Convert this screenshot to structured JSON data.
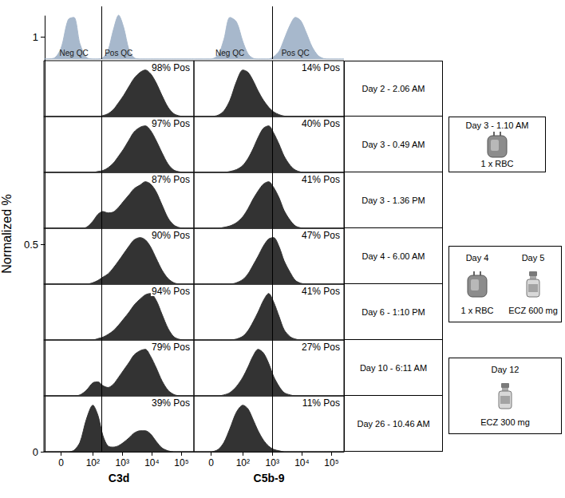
{
  "chart_data": [
    {
      "type": "area",
      "x_label": "C3d",
      "x": [
        -30,
        -10,
        0,
        10,
        20,
        35,
        60,
        100,
        150,
        220,
        330,
        500,
        750,
        1100,
        1700,
        2500,
        4000,
        6000,
        9000,
        14000,
        22000,
        35000,
        55000,
        90000,
        150000,
        262144
      ],
      "xlim": [
        -30,
        262144
      ],
      "xticks": [
        0,
        {
          "value": 100,
          "label": "10²"
        },
        {
          "value": 1000,
          "label": "10³"
        },
        {
          "value": 10000,
          "label": "10⁴"
        },
        {
          "value": 100000,
          "label": "10⁵"
        }
      ],
      "ylim": [
        0,
        1.2
      ],
      "threshold": 200,
      "tick_labels": "x",
      "qc": [
        {
          "name": "Neg QC",
          "color": "#a7b8cc",
          "values": [
            0,
            0.02,
            0.25,
            0.9,
            0.95,
            0.35,
            0.04,
            0,
            0,
            0,
            0,
            0,
            0,
            0,
            0,
            0,
            0,
            0,
            0,
            0,
            0,
            0,
            0,
            0,
            0,
            0
          ]
        },
        {
          "name": "Pos QC",
          "color": "#a7b8cc",
          "values": [
            0,
            0,
            0,
            0,
            0,
            0,
            0,
            0,
            0,
            0.03,
            0.2,
            0.67,
            1,
            0.73,
            0.2,
            0.03,
            0,
            0,
            0,
            0,
            0,
            0,
            0,
            0,
            0,
            0
          ]
        }
      ],
      "series": [
        {
          "name": "98% Pos",
          "color": "#333333",
          "values": [
            0,
            0,
            0,
            0,
            0,
            0,
            0,
            0,
            0,
            0.02,
            0.06,
            0.15,
            0.3,
            0.45,
            0.65,
            0.82,
            0.95,
            1,
            0.92,
            0.72,
            0.45,
            0.2,
            0.06,
            0.01,
            0,
            0
          ]
        },
        {
          "name": "97% Pos",
          "color": "#333333",
          "values": [
            0,
            0,
            0,
            0,
            0,
            0,
            0,
            0,
            0.02,
            0.04,
            0.1,
            0.2,
            0.35,
            0.5,
            0.7,
            0.87,
            0.97,
            1,
            0.9,
            0.68,
            0.42,
            0.18,
            0.05,
            0.01,
            0,
            0
          ]
        },
        {
          "name": "87% Pos",
          "color": "#333333",
          "values": [
            0,
            0,
            0,
            0,
            0,
            0,
            0.02,
            0.15,
            0.3,
            0.36,
            0.33,
            0.35,
            0.45,
            0.58,
            0.72,
            0.85,
            0.93,
            1,
            0.95,
            0.78,
            0.5,
            0.22,
            0.07,
            0.01,
            0,
            0
          ]
        },
        {
          "name": "90% Pos",
          "color": "#333333",
          "values": [
            0,
            0,
            0,
            0,
            0,
            0,
            0,
            0.03,
            0.08,
            0.15,
            0.22,
            0.35,
            0.5,
            0.65,
            0.82,
            0.95,
            1,
            0.95,
            0.8,
            0.55,
            0.3,
            0.12,
            0.03,
            0,
            0,
            0
          ]
        },
        {
          "name": "94% Pos",
          "color": "#333333",
          "values": [
            0,
            0,
            0,
            0,
            0,
            0,
            0,
            0,
            0.03,
            0.06,
            0.12,
            0.2,
            0.32,
            0.45,
            0.6,
            0.75,
            0.88,
            0.97,
            1,
            0.85,
            0.55,
            0.25,
            0.07,
            0.01,
            0,
            0
          ]
        },
        {
          "name": "79% Pos",
          "color": "#333333",
          "values": [
            0,
            0,
            0,
            0,
            0,
            0.02,
            0.12,
            0.28,
            0.3,
            0.22,
            0.18,
            0.25,
            0.4,
            0.55,
            0.72,
            0.88,
            0.97,
            1,
            0.85,
            0.6,
            0.32,
            0.12,
            0.03,
            0,
            0,
            0
          ]
        },
        {
          "name": "39% Pos",
          "color": "#333333",
          "values": [
            0,
            0,
            0,
            0,
            0.03,
            0.2,
            0.7,
            1,
            0.78,
            0.35,
            0.12,
            0.1,
            0.13,
            0.2,
            0.3,
            0.4,
            0.45,
            0.45,
            0.38,
            0.22,
            0.08,
            0.02,
            0,
            0,
            0,
            0
          ]
        }
      ]
    },
    {
      "type": "area",
      "x_label": "C5b-9",
      "x": [
        -30,
        -10,
        0,
        10,
        20,
        35,
        60,
        100,
        150,
        220,
        330,
        500,
        750,
        1100,
        1700,
        2500,
        4000,
        6000,
        9000,
        14000,
        22000,
        35000,
        55000,
        90000,
        150000,
        262144
      ],
      "xlim": [
        -30,
        262144
      ],
      "xticks": [
        0,
        {
          "value": 100,
          "label": "10²"
        },
        {
          "value": 1000,
          "label": "10³"
        },
        {
          "value": 10000,
          "label": "10⁴"
        },
        {
          "value": 100000,
          "label": "10⁵"
        }
      ],
      "ylim": [
        0,
        1.2
      ],
      "threshold": 1000,
      "tick_labels": "x",
      "qc": [
        {
          "name": "Neg QC",
          "color": "#a7b8cc",
          "values": [
            0,
            0,
            0,
            0.1,
            0.45,
            0.95,
            0.85,
            0.4,
            0.12,
            0.02,
            0,
            0,
            0,
            0,
            0,
            0,
            0,
            0,
            0,
            0,
            0,
            0,
            0,
            0,
            0,
            0
          ]
        },
        {
          "name": "Pos QC",
          "color": "#a7b8cc",
          "values": [
            0,
            0,
            0,
            0,
            0,
            0,
            0,
            0,
            0,
            0,
            0,
            0,
            0,
            0.05,
            0.18,
            0.45,
            0.78,
            0.95,
            0.88,
            0.6,
            0.28,
            0.08,
            0.01,
            0,
            0,
            0
          ]
        }
      ],
      "series": [
        {
          "name": "14% Pos",
          "color": "#333333",
          "values": [
            0,
            0,
            0,
            0.03,
            0.12,
            0.35,
            0.75,
            1,
            0.95,
            0.78,
            0.55,
            0.35,
            0.2,
            0.1,
            0.04,
            0.01,
            0,
            0,
            0,
            0,
            0,
            0,
            0,
            0,
            0,
            0
          ]
        },
        {
          "name": "40% Pos",
          "color": "#333333",
          "values": [
            0,
            0,
            0,
            0,
            0,
            0.02,
            0.06,
            0.15,
            0.3,
            0.5,
            0.75,
            0.95,
            1,
            0.85,
            0.6,
            0.35,
            0.15,
            0.05,
            0.01,
            0,
            0,
            0,
            0,
            0,
            0,
            0
          ]
        },
        {
          "name": "41% Pos",
          "color": "#333333",
          "values": [
            0,
            0,
            0,
            0,
            0.02,
            0.05,
            0.12,
            0.25,
            0.42,
            0.62,
            0.8,
            0.95,
            1,
            0.88,
            0.65,
            0.38,
            0.17,
            0.05,
            0.01,
            0,
            0,
            0,
            0,
            0,
            0,
            0
          ]
        },
        {
          "name": "47% Pos",
          "color": "#333333",
          "values": [
            0,
            0,
            0,
            0,
            0,
            0,
            0.03,
            0.1,
            0.22,
            0.4,
            0.6,
            0.82,
            0.97,
            1,
            0.8,
            0.5,
            0.25,
            0.08,
            0.02,
            0,
            0,
            0,
            0,
            0,
            0,
            0
          ]
        },
        {
          "name": "41% Pos",
          "color": "#333333",
          "values": [
            0,
            0,
            0,
            0,
            0,
            0,
            0.02,
            0.08,
            0.2,
            0.38,
            0.6,
            0.85,
            1,
            0.82,
            0.5,
            0.22,
            0.07,
            0.02,
            0,
            0,
            0,
            0,
            0,
            0,
            0,
            0
          ]
        },
        {
          "name": "27% Pos",
          "color": "#333333",
          "values": [
            0,
            0,
            0,
            0,
            0.02,
            0.07,
            0.2,
            0.4,
            0.62,
            0.85,
            1,
            0.92,
            0.7,
            0.42,
            0.2,
            0.07,
            0.02,
            0,
            0,
            0,
            0,
            0,
            0,
            0,
            0,
            0
          ]
        },
        {
          "name": "11% Pos",
          "color": "#333333",
          "values": [
            0,
            0,
            0,
            0.05,
            0.2,
            0.5,
            0.85,
            1,
            0.92,
            0.7,
            0.45,
            0.25,
            0.12,
            0.05,
            0.02,
            0,
            0,
            0,
            0,
            0,
            0,
            0,
            0,
            0,
            0,
            0
          ]
        }
      ]
    }
  ],
  "y_axis": {
    "label": "Normalized %",
    "ylim": [
      0,
      1.05
    ],
    "yticks": [
      0,
      0.5,
      1
    ]
  },
  "timepoints": [
    "Day 2 - 2.06 AM",
    "Day 3 - 0.49 AM",
    "Day 3 - 1.36 PM",
    "Day 4 - 6.00 AM",
    "Day 6 - 1:10 PM",
    "Day 10 - 6:11 AM",
    "Day 26 - 10.46 AM"
  ],
  "treatments": [
    {
      "items": [
        {
          "day": "Day 3 - 1.10 AM",
          "label": "1 x RBC",
          "marker": "blood_bag"
        }
      ]
    },
    {
      "items": [
        {
          "day": "Day 4",
          "label": "1 x RBC",
          "marker": "blood_bag"
        },
        {
          "day": "Day 5",
          "label": "ECZ 600 mg",
          "marker": "vial"
        }
      ]
    },
    {
      "items": [
        {
          "day": "Day 12",
          "label": "ECZ 300 mg",
          "marker": "vial"
        }
      ]
    }
  ]
}
